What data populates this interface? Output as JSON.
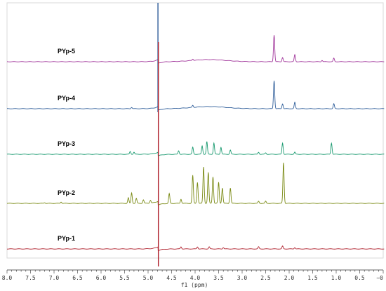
{
  "chart_data": {
    "type": "line",
    "title": "",
    "xlabel": "f1 (ppm)",
    "ylabel": "",
    "x_reversed": true,
    "xlim": [
      8.0,
      0.0
    ],
    "x_ticks": [
      "8.0",
      "7.5",
      "7.0",
      "6.5",
      "6.0",
      "5.5",
      "5.0",
      "4.5",
      "4.0",
      "3.5",
      "3.0",
      "2.5",
      "2.0",
      "1.5",
      "1.0",
      "0.5",
      "~0"
    ],
    "grid": false,
    "legend": "none",
    "solvent_peak_ppm": 4.79,
    "series": [
      {
        "name": "PYp-5",
        "color": "#a0349a",
        "peaks": [
          {
            "ppm": 4.05,
            "height": 2
          },
          {
            "ppm": 3.7,
            "height": 3,
            "width": 0.5
          },
          {
            "ppm": 2.32,
            "height": 38
          },
          {
            "ppm": 2.14,
            "height": 6
          },
          {
            "ppm": 1.88,
            "height": 10
          },
          {
            "ppm": 1.05,
            "height": 5
          },
          {
            "ppm": 1.3,
            "height": 2
          }
        ]
      },
      {
        "name": "PYp-4",
        "color": "#2f5e9a",
        "peaks": [
          {
            "ppm": 5.35,
            "height": 2
          },
          {
            "ppm": 4.05,
            "height": 3
          },
          {
            "ppm": 3.7,
            "height": 3,
            "width": 0.5
          },
          {
            "ppm": 2.32,
            "height": 40
          },
          {
            "ppm": 2.14,
            "height": 7
          },
          {
            "ppm": 1.88,
            "height": 9
          },
          {
            "ppm": 1.05,
            "height": 7
          }
        ]
      },
      {
        "name": "PYp-3",
        "color": "#1a9a70",
        "peaks": [
          {
            "ppm": 5.38,
            "height": 4
          },
          {
            "ppm": 5.3,
            "height": 3
          },
          {
            "ppm": 4.35,
            "height": 5
          },
          {
            "ppm": 4.05,
            "height": 10
          },
          {
            "ppm": 3.85,
            "height": 12
          },
          {
            "ppm": 3.75,
            "height": 18
          },
          {
            "ppm": 3.6,
            "height": 16
          },
          {
            "ppm": 3.45,
            "height": 10
          },
          {
            "ppm": 3.25,
            "height": 6
          },
          {
            "ppm": 2.65,
            "height": 3
          },
          {
            "ppm": 2.5,
            "height": 2
          },
          {
            "ppm": 2.14,
            "height": 16
          },
          {
            "ppm": 1.88,
            "height": 3
          },
          {
            "ppm": 1.1,
            "height": 16
          }
        ]
      },
      {
        "name": "PYp-2",
        "color": "#7a8a14",
        "peaks": [
          {
            "ppm": 5.42,
            "height": 8
          },
          {
            "ppm": 5.35,
            "height": 15
          },
          {
            "ppm": 5.25,
            "height": 7
          },
          {
            "ppm": 5.1,
            "height": 5
          },
          {
            "ppm": 4.95,
            "height": 4
          },
          {
            "ppm": 4.55,
            "height": 14
          },
          {
            "ppm": 4.3,
            "height": 6
          },
          {
            "ppm": 4.05,
            "height": 40
          },
          {
            "ppm": 3.95,
            "height": 30
          },
          {
            "ppm": 3.82,
            "height": 52
          },
          {
            "ppm": 3.72,
            "height": 44
          },
          {
            "ppm": 3.62,
            "height": 38
          },
          {
            "ppm": 3.5,
            "height": 30
          },
          {
            "ppm": 3.42,
            "height": 22
          },
          {
            "ppm": 3.25,
            "height": 22
          },
          {
            "ppm": 2.65,
            "height": 3
          },
          {
            "ppm": 2.5,
            "height": 3
          },
          {
            "ppm": 2.12,
            "height": 58
          },
          {
            "ppm": 6.85,
            "height": 2
          },
          {
            "ppm": 7.2,
            "height": 1
          }
        ]
      },
      {
        "name": "PYp-1",
        "color": "#b0222e",
        "peaks": [
          {
            "ppm": 4.3,
            "height": 3
          },
          {
            "ppm": 3.95,
            "height": 3
          },
          {
            "ppm": 3.7,
            "height": 3
          },
          {
            "ppm": 3.4,
            "height": 2
          },
          {
            "ppm": 2.65,
            "height": 3
          },
          {
            "ppm": 2.14,
            "height": 4
          },
          {
            "ppm": 1.88,
            "height": 2
          }
        ]
      }
    ]
  }
}
